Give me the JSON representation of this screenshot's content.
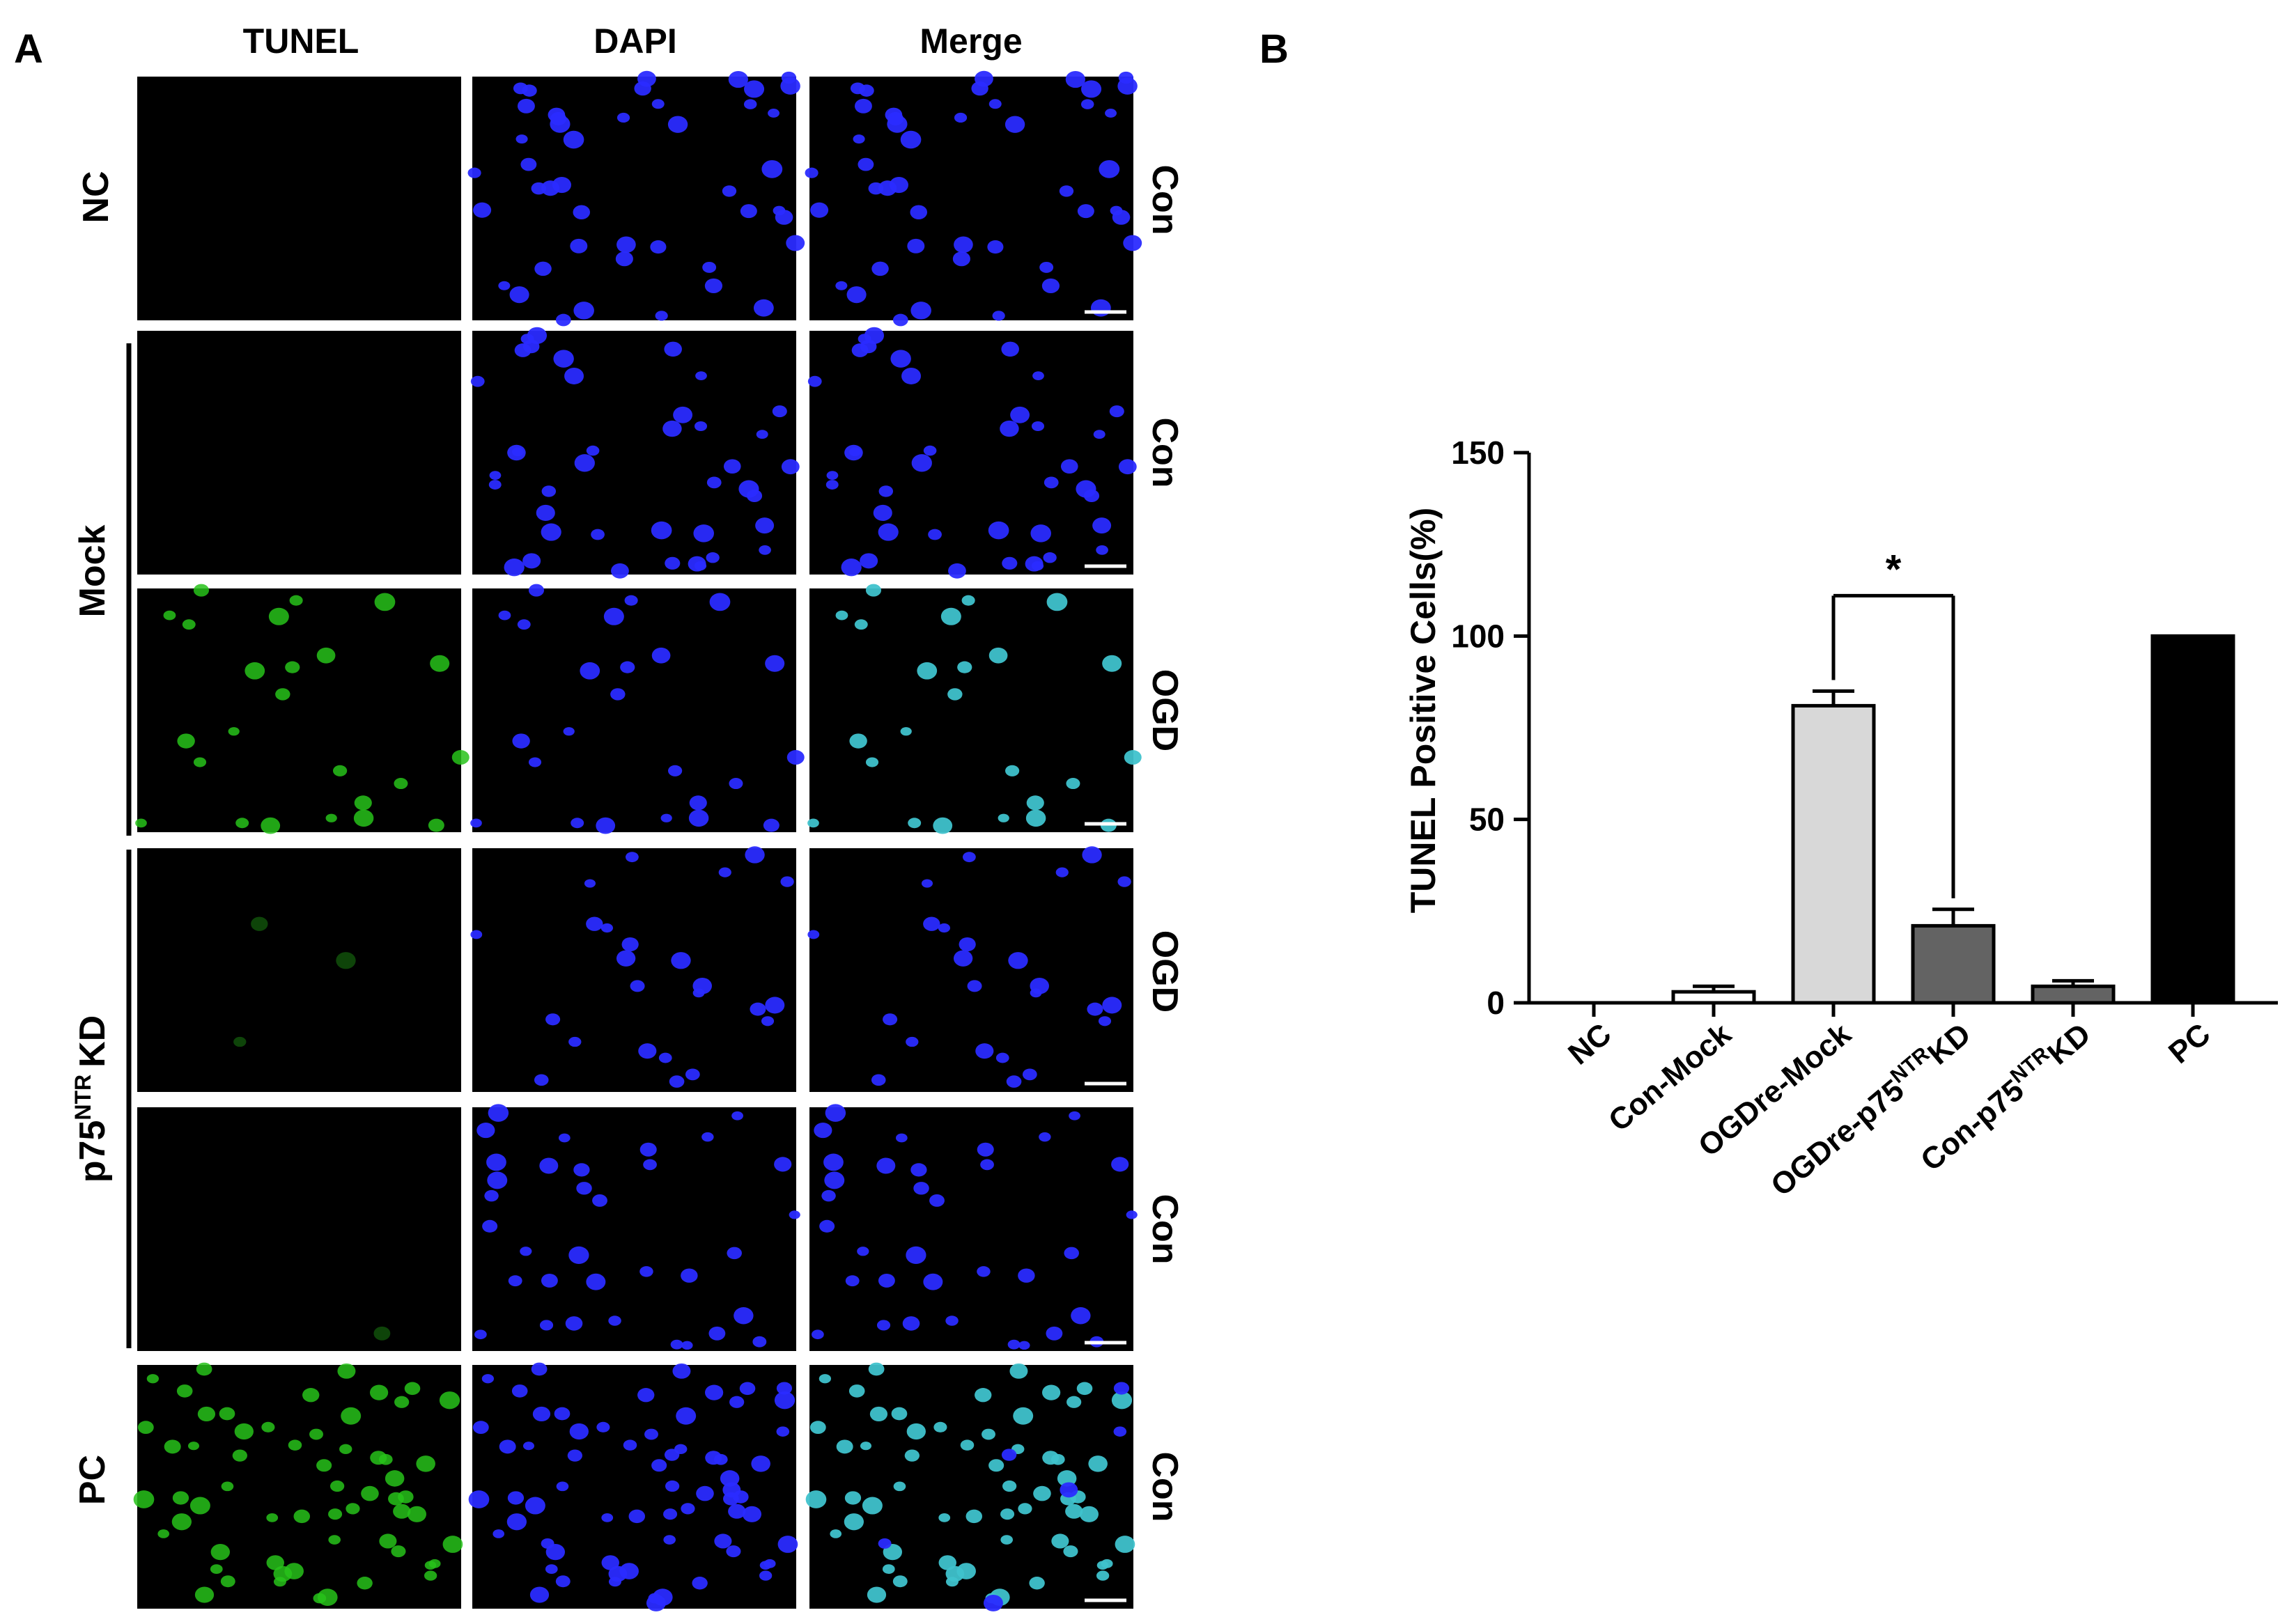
{
  "panel_a": {
    "label": "A",
    "columns": [
      "TUNEL",
      "DAPI",
      "Merge"
    ],
    "groups": [
      "NC",
      "Mock",
      "p75",
      "NTR",
      "KD",
      "PC"
    ],
    "conditions": [
      "Con",
      "Con",
      "OGD",
      "OGD",
      "Con",
      "Con"
    ],
    "rows": [
      {
        "group": "NC",
        "condition": "Con",
        "green": 0,
        "blue": 45
      },
      {
        "group": "Mock",
        "condition": "Con",
        "green": 0,
        "blue": 40
      },
      {
        "group": "Mock",
        "condition": "OGD",
        "green": 24,
        "blue": 24
      },
      {
        "group": "p75NTR KD",
        "condition": "OGD",
        "green": 3,
        "blue": 24
      },
      {
        "group": "p75NTR KD",
        "condition": "Con",
        "green": 1,
        "blue": 34
      },
      {
        "group": "PC",
        "condition": "Con",
        "green": 60,
        "blue": 66
      }
    ],
    "colors": {
      "green": "#27c21a",
      "blue": "#2a2bff",
      "cyan": "#3fc2cc",
      "panel_bg": "#000000"
    }
  },
  "panel_b": {
    "label": "B",
    "significance": "*",
    "tick_labels": [
      {
        "main": "NC"
      },
      {
        "main": "Con-Mock"
      },
      {
        "main": "OGDre-Mock"
      },
      {
        "main": "OGDre-p75",
        "sup": "NTR",
        "tail": "KD"
      },
      {
        "main": "Con-p75",
        "sup": "NTR",
        "tail": "KD"
      },
      {
        "main": "PC"
      }
    ]
  },
  "chart_data": {
    "type": "bar",
    "categories": [
      "NC",
      "Con-Mock",
      "OGDre-Mock",
      "OGDre-p75NTR KD",
      "Con-p75NTR KD",
      "PC"
    ],
    "values": [
      0,
      3,
      81,
      21,
      4.5,
      100
    ],
    "errors": [
      0,
      1.5,
      4,
      4.5,
      1.5,
      0
    ],
    "bar_colors": [
      "#ffffff",
      "#ffffff",
      "#d8d8d8",
      "#636363",
      "#636363",
      "#000000"
    ],
    "ylabel": "TUNEL Positive Cells(%)",
    "xlabel": "",
    "ylim": [
      0,
      150
    ],
    "yticks": [
      "0",
      "50",
      "100",
      "150"
    ],
    "ytick_values": [
      0,
      50,
      100,
      150
    ],
    "significance": {
      "from": "OGDre-Mock",
      "to": "OGDre-p75NTR KD",
      "label": "*"
    },
    "grid": false
  }
}
